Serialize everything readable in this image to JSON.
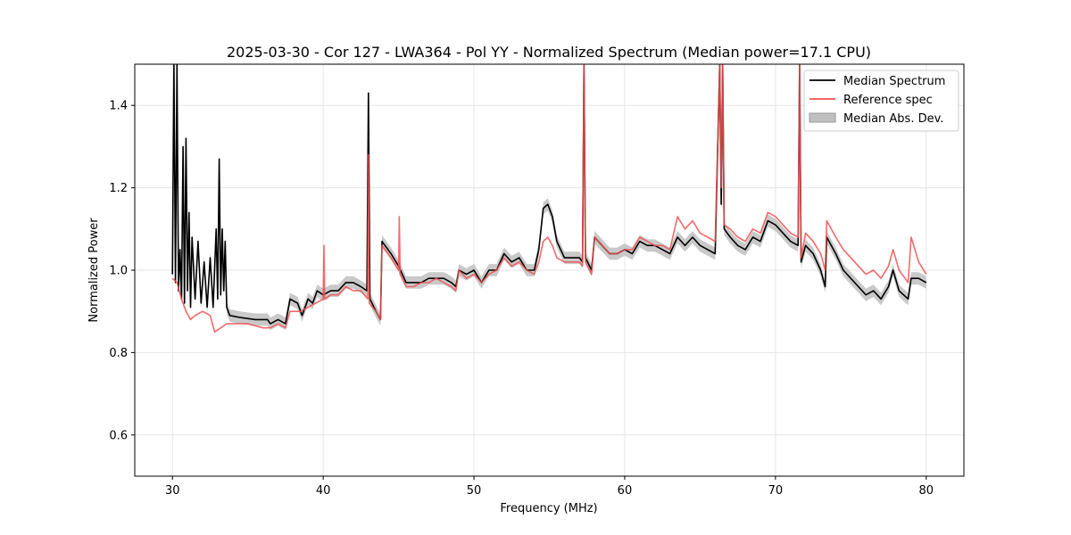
{
  "chart_data": {
    "type": "line",
    "title": "2025-03-30 - Cor 127 - LWA364 - Pol YY - Normalized Spectrum (Median power=17.1 CPU)",
    "xlabel": "Frequency (MHz)",
    "ylabel": "Normalized Power",
    "xlim": [
      27.5,
      82.5
    ],
    "ylim": [
      0.5,
      1.5
    ],
    "xticks": [
      30,
      40,
      50,
      60,
      70,
      80
    ],
    "yticks": [
      0.6,
      0.8,
      1.0,
      1.2,
      1.4
    ],
    "xtick_labels": [
      "30",
      "40",
      "50",
      "60",
      "70",
      "80"
    ],
    "ytick_labels": [
      "0.6",
      "0.8",
      "1.0",
      "1.2",
      "1.4"
    ],
    "grid": true,
    "legend_position": "top-right",
    "series": [
      {
        "name": "Median Spectrum",
        "color": "#000000",
        "points": [
          [
            30.0,
            0.99
          ],
          [
            30.1,
            1.5
          ],
          [
            30.2,
            0.97
          ],
          [
            30.3,
            1.5
          ],
          [
            30.4,
            0.95
          ],
          [
            30.5,
            1.05
          ],
          [
            30.6,
            0.93
          ],
          [
            30.7,
            1.3
          ],
          [
            30.8,
            0.92
          ],
          [
            30.9,
            1.32
          ],
          [
            31.0,
            0.95
          ],
          [
            31.1,
            1.14
          ],
          [
            31.2,
            0.91
          ],
          [
            31.3,
            1.08
          ],
          [
            31.5,
            0.93
          ],
          [
            31.7,
            1.07
          ],
          [
            31.9,
            0.92
          ],
          [
            32.1,
            1.02
          ],
          [
            32.3,
            0.91
          ],
          [
            32.5,
            1.03
          ],
          [
            32.7,
            0.91
          ],
          [
            32.9,
            1.1
          ],
          [
            33.0,
            0.93
          ],
          [
            33.1,
            1.27
          ],
          [
            33.2,
            0.94
          ],
          [
            33.3,
            1.1
          ],
          [
            33.4,
            0.95
          ],
          [
            33.5,
            1.07
          ],
          [
            33.6,
            0.91
          ],
          [
            33.8,
            0.89
          ],
          [
            34.5,
            0.885
          ],
          [
            35.5,
            0.88
          ],
          [
            36.3,
            0.88
          ],
          [
            36.5,
            0.87
          ],
          [
            37.0,
            0.88
          ],
          [
            37.5,
            0.87
          ],
          [
            37.8,
            0.93
          ],
          [
            38.3,
            0.92
          ],
          [
            38.6,
            0.89
          ],
          [
            39.0,
            0.93
          ],
          [
            39.3,
            0.92
          ],
          [
            39.6,
            0.95
          ],
          [
            40.0,
            0.94
          ],
          [
            40.5,
            0.95
          ],
          [
            41.0,
            0.95
          ],
          [
            41.5,
            0.97
          ],
          [
            42.0,
            0.97
          ],
          [
            42.5,
            0.96
          ],
          [
            42.9,
            0.95
          ],
          [
            43.0,
            1.43
          ],
          [
            43.1,
            0.93
          ],
          [
            43.5,
            0.9
          ],
          [
            43.8,
            0.88
          ],
          [
            43.9,
            1.07
          ],
          [
            44.5,
            1.04
          ],
          [
            45.0,
            1.01
          ],
          [
            45.5,
            0.97
          ],
          [
            46.0,
            0.97
          ],
          [
            46.5,
            0.97
          ],
          [
            47.0,
            0.98
          ],
          [
            47.5,
            0.98
          ],
          [
            48.0,
            0.98
          ],
          [
            48.5,
            0.97
          ],
          [
            48.8,
            0.96
          ],
          [
            49.0,
            1.0
          ],
          [
            49.5,
            0.99
          ],
          [
            50.0,
            1.0
          ],
          [
            50.5,
            0.97
          ],
          [
            51.0,
            1.0
          ],
          [
            51.5,
            1.0
          ],
          [
            52.0,
            1.04
          ],
          [
            52.5,
            1.02
          ],
          [
            53.0,
            1.03
          ],
          [
            53.5,
            1.0
          ],
          [
            54.0,
            1.0
          ],
          [
            54.3,
            1.05
          ],
          [
            54.6,
            1.15
          ],
          [
            54.9,
            1.16
          ],
          [
            55.2,
            1.13
          ],
          [
            55.5,
            1.07
          ],
          [
            56.0,
            1.03
          ],
          [
            56.5,
            1.03
          ],
          [
            57.0,
            1.03
          ],
          [
            57.2,
            1.02
          ],
          [
            57.3,
            1.5
          ],
          [
            57.4,
            1.03
          ],
          [
            57.8,
            1.0
          ],
          [
            58.0,
            1.08
          ],
          [
            58.5,
            1.06
          ],
          [
            59.0,
            1.04
          ],
          [
            59.5,
            1.04
          ],
          [
            60.0,
            1.05
          ],
          [
            60.5,
            1.04
          ],
          [
            61.0,
            1.07
          ],
          [
            61.5,
            1.06
          ],
          [
            62.0,
            1.06
          ],
          [
            62.5,
            1.05
          ],
          [
            63.0,
            1.04
          ],
          [
            63.5,
            1.08
          ],
          [
            64.0,
            1.06
          ],
          [
            64.5,
            1.08
          ],
          [
            65.0,
            1.06
          ],
          [
            65.5,
            1.05
          ],
          [
            66.0,
            1.04
          ],
          [
            66.3,
            1.5
          ],
          [
            66.4,
            1.16
          ],
          [
            66.5,
            1.5
          ],
          [
            66.6,
            1.1
          ],
          [
            67.0,
            1.08
          ],
          [
            67.5,
            1.06
          ],
          [
            68.0,
            1.05
          ],
          [
            68.5,
            1.08
          ],
          [
            69.0,
            1.07
          ],
          [
            69.5,
            1.12
          ],
          [
            70.0,
            1.11
          ],
          [
            70.5,
            1.09
          ],
          [
            71.0,
            1.07
          ],
          [
            71.5,
            1.06
          ],
          [
            71.6,
            1.5
          ],
          [
            71.7,
            1.02
          ],
          [
            72.0,
            1.06
          ],
          [
            72.5,
            1.04
          ],
          [
            73.0,
            1.0
          ],
          [
            73.3,
            0.96
          ],
          [
            73.4,
            1.08
          ],
          [
            74.0,
            1.04
          ],
          [
            74.5,
            1.0
          ],
          [
            75.0,
            0.98
          ],
          [
            75.5,
            0.96
          ],
          [
            76.0,
            0.94
          ],
          [
            76.5,
            0.95
          ],
          [
            77.0,
            0.93
          ],
          [
            77.5,
            0.96
          ],
          [
            77.8,
            1.0
          ],
          [
            78.2,
            0.95
          ],
          [
            78.8,
            0.93
          ],
          [
            79.0,
            0.98
          ],
          [
            79.5,
            0.98
          ],
          [
            80.0,
            0.97
          ]
        ]
      },
      {
        "name": "Reference spec",
        "color": "#f05050",
        "points": [
          [
            30.0,
            0.98
          ],
          [
            30.3,
            0.97
          ],
          [
            30.6,
            0.93
          ],
          [
            30.9,
            0.9
          ],
          [
            31.2,
            0.88
          ],
          [
            31.5,
            0.89
          ],
          [
            32.0,
            0.9
          ],
          [
            32.5,
            0.89
          ],
          [
            32.8,
            0.85
          ],
          [
            33.2,
            0.86
          ],
          [
            33.6,
            0.87
          ],
          [
            34.0,
            0.87
          ],
          [
            35.0,
            0.87
          ],
          [
            36.0,
            0.86
          ],
          [
            36.5,
            0.86
          ],
          [
            37.0,
            0.87
          ],
          [
            37.5,
            0.86
          ],
          [
            37.8,
            0.9
          ],
          [
            38.5,
            0.9
          ],
          [
            39.0,
            0.91
          ],
          [
            39.5,
            0.92
          ],
          [
            40.0,
            0.93
          ],
          [
            40.05,
            1.06
          ],
          [
            40.1,
            0.93
          ],
          [
            40.5,
            0.94
          ],
          [
            41.0,
            0.94
          ],
          [
            41.5,
            0.96
          ],
          [
            42.0,
            0.95
          ],
          [
            42.5,
            0.95
          ],
          [
            42.95,
            0.93
          ],
          [
            43.0,
            1.28
          ],
          [
            43.05,
            0.92
          ],
          [
            43.5,
            0.9
          ],
          [
            43.8,
            0.88
          ],
          [
            43.9,
            1.06
          ],
          [
            44.5,
            1.03
          ],
          [
            45.0,
            1.0
          ],
          [
            45.05,
            1.13
          ],
          [
            45.1,
            0.99
          ],
          [
            45.5,
            0.96
          ],
          [
            46.0,
            0.96
          ],
          [
            46.5,
            0.97
          ],
          [
            47.0,
            0.97
          ],
          [
            47.5,
            0.98
          ],
          [
            48.0,
            0.97
          ],
          [
            48.5,
            0.96
          ],
          [
            48.8,
            0.95
          ],
          [
            49.0,
            1.0
          ],
          [
            49.5,
            0.98
          ],
          [
            50.0,
            0.99
          ],
          [
            50.5,
            0.97
          ],
          [
            51.0,
            0.99
          ],
          [
            51.5,
            1.0
          ],
          [
            52.0,
            1.03
          ],
          [
            52.5,
            1.01
          ],
          [
            53.0,
            1.02
          ],
          [
            53.5,
            1.0
          ],
          [
            54.0,
            0.99
          ],
          [
            54.3,
            1.02
          ],
          [
            54.6,
            1.07
          ],
          [
            54.9,
            1.08
          ],
          [
            55.2,
            1.06
          ],
          [
            55.5,
            1.03
          ],
          [
            56.0,
            1.02
          ],
          [
            56.5,
            1.02
          ],
          [
            57.0,
            1.02
          ],
          [
            57.2,
            1.01
          ],
          [
            57.3,
            1.5
          ],
          [
            57.4,
            1.02
          ],
          [
            57.8,
            0.99
          ],
          [
            58.0,
            1.08
          ],
          [
            58.5,
            1.06
          ],
          [
            59.0,
            1.04
          ],
          [
            59.5,
            1.04
          ],
          [
            60.0,
            1.05
          ],
          [
            60.5,
            1.05
          ],
          [
            61.0,
            1.08
          ],
          [
            61.5,
            1.07
          ],
          [
            62.0,
            1.06
          ],
          [
            62.5,
            1.06
          ],
          [
            63.0,
            1.05
          ],
          [
            63.5,
            1.13
          ],
          [
            64.0,
            1.1
          ],
          [
            64.5,
            1.12
          ],
          [
            65.0,
            1.09
          ],
          [
            65.5,
            1.08
          ],
          [
            66.0,
            1.07
          ],
          [
            66.3,
            1.5
          ],
          [
            66.4,
            1.2
          ],
          [
            66.5,
            1.5
          ],
          [
            66.6,
            1.11
          ],
          [
            67.0,
            1.1
          ],
          [
            67.5,
            1.08
          ],
          [
            68.0,
            1.07
          ],
          [
            68.5,
            1.1
          ],
          [
            69.0,
            1.09
          ],
          [
            69.5,
            1.14
          ],
          [
            70.0,
            1.13
          ],
          [
            70.5,
            1.11
          ],
          [
            71.0,
            1.09
          ],
          [
            71.5,
            1.08
          ],
          [
            71.6,
            1.5
          ],
          [
            71.7,
            1.03
          ],
          [
            72.0,
            1.09
          ],
          [
            72.5,
            1.07
          ],
          [
            73.0,
            1.04
          ],
          [
            73.3,
            1.0
          ],
          [
            73.4,
            1.12
          ],
          [
            74.0,
            1.08
          ],
          [
            74.5,
            1.05
          ],
          [
            75.0,
            1.03
          ],
          [
            75.5,
            1.01
          ],
          [
            76.0,
            0.99
          ],
          [
            76.5,
            1.0
          ],
          [
            77.0,
            0.98
          ],
          [
            77.5,
            1.01
          ],
          [
            77.8,
            1.05
          ],
          [
            78.2,
            1.0
          ],
          [
            78.8,
            0.97
          ],
          [
            79.0,
            1.08
          ],
          [
            79.5,
            1.02
          ],
          [
            80.0,
            0.99
          ]
        ]
      },
      {
        "name": "Median Abs. Dev.",
        "color": "#c0c0c0",
        "fill": true,
        "mad": 0.015
      }
    ]
  }
}
